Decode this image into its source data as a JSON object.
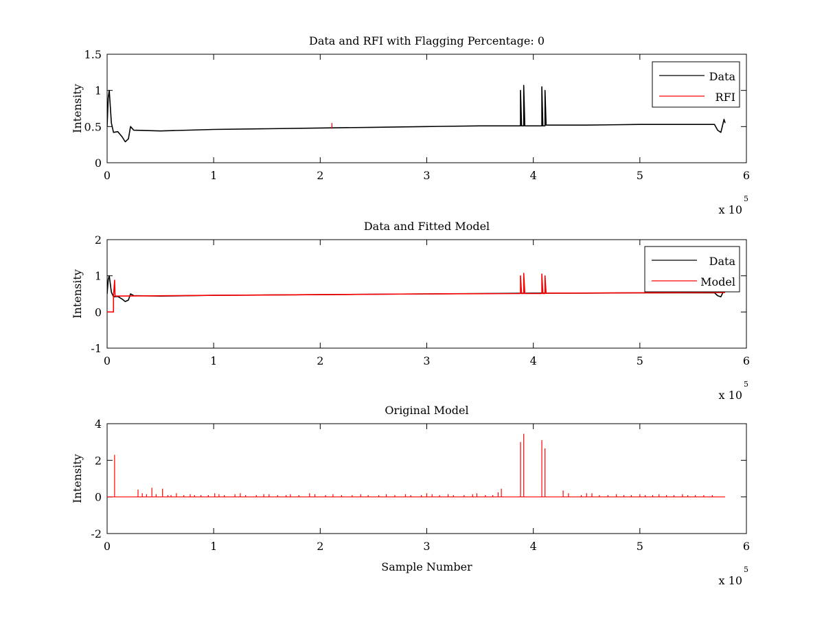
{
  "chart_data": [
    {
      "type": "line",
      "title": "Data and RFI with Flagging Percentage: 0",
      "xlabel": "",
      "ylabel": "Intensity",
      "xlim": [
        0,
        6
      ],
      "ylim": [
        0,
        1.5
      ],
      "x_ticks": [
        "0",
        "1",
        "2",
        "3",
        "4",
        "5",
        "6"
      ],
      "y_ticks": [
        "0",
        "0.5",
        "1",
        "1.5"
      ],
      "x_multiplier": "x 10",
      "x_multiplier_exp": "5",
      "legend_position": "top-right",
      "legend": [
        "Data",
        "RFI"
      ],
      "series": [
        {
          "name": "Data",
          "color": "#000000",
          "points": [
            [
              0,
              0.5
            ],
            [
              0.01,
              0.9
            ],
            [
              0.02,
              1.0
            ],
            [
              0.04,
              0.55
            ],
            [
              0.06,
              0.42
            ],
            [
              0.1,
              0.43
            ],
            [
              0.14,
              0.36
            ],
            [
              0.17,
              0.29
            ],
            [
              0.2,
              0.33
            ],
            [
              0.22,
              0.5
            ],
            [
              0.25,
              0.45
            ],
            [
              0.5,
              0.44
            ],
            [
              1,
              0.46
            ],
            [
              1.5,
              0.47
            ],
            [
              2,
              0.48
            ],
            [
              2.5,
              0.49
            ],
            [
              3,
              0.5
            ],
            [
              3.5,
              0.51
            ],
            [
              3.88,
              0.51
            ],
            [
              3.88,
              1.0
            ],
            [
              3.89,
              0.51
            ],
            [
              3.91,
              0.51
            ],
            [
              3.91,
              1.07
            ],
            [
              3.92,
              0.51
            ],
            [
              4.08,
              0.51
            ],
            [
              4.08,
              1.05
            ],
            [
              4.09,
              0.51
            ],
            [
              4.11,
              0.51
            ],
            [
              4.11,
              1.0
            ],
            [
              4.12,
              0.52
            ],
            [
              4.5,
              0.52
            ],
            [
              5,
              0.53
            ],
            [
              5.5,
              0.53
            ],
            [
              5.7,
              0.53
            ],
            [
              5.73,
              0.45
            ],
            [
              5.76,
              0.42
            ],
            [
              5.79,
              0.6
            ],
            [
              5.8,
              0.55
            ]
          ]
        },
        {
          "name": "RFI",
          "color": "#ff0000",
          "spikes": [
            [
              2.11,
              0.55
            ]
          ]
        }
      ]
    },
    {
      "type": "line",
      "title": "Data and Fitted Model",
      "xlabel": "",
      "ylabel": "Intensity",
      "xlim": [
        0,
        6
      ],
      "ylim": [
        -1,
        2
      ],
      "x_ticks": [
        "0",
        "1",
        "2",
        "3",
        "4",
        "5",
        "6"
      ],
      "y_ticks": [
        "-1",
        "0",
        "1",
        "2"
      ],
      "x_multiplier": "x 10",
      "x_multiplier_exp": "5",
      "legend_position": "top-right",
      "legend": [
        "Data",
        "Model"
      ],
      "series": [
        {
          "name": "Data",
          "color": "#000000",
          "points": [
            [
              0,
              0.5
            ],
            [
              0.01,
              0.9
            ],
            [
              0.02,
              1.0
            ],
            [
              0.04,
              0.55
            ],
            [
              0.06,
              0.42
            ],
            [
              0.1,
              0.43
            ],
            [
              0.14,
              0.36
            ],
            [
              0.17,
              0.29
            ],
            [
              0.2,
              0.33
            ],
            [
              0.22,
              0.5
            ],
            [
              0.25,
              0.45
            ],
            [
              0.5,
              0.44
            ],
            [
              1,
              0.46
            ],
            [
              1.5,
              0.47
            ],
            [
              2,
              0.48
            ],
            [
              2.5,
              0.49
            ],
            [
              3,
              0.5
            ],
            [
              3.5,
              0.51
            ],
            [
              4,
              0.52
            ],
            [
              4.5,
              0.52
            ],
            [
              5,
              0.53
            ],
            [
              5.5,
              0.53
            ],
            [
              5.7,
              0.53
            ],
            [
              5.73,
              0.45
            ],
            [
              5.76,
              0.42
            ],
            [
              5.79,
              0.6
            ],
            [
              5.8,
              0.55
            ]
          ]
        },
        {
          "name": "Model",
          "color": "#ff0000",
          "points": [
            [
              0,
              0
            ],
            [
              0.06,
              0
            ],
            [
              0.06,
              0.44
            ],
            [
              0.07,
              0.88
            ],
            [
              0.075,
              0.44
            ],
            [
              1,
              0.46
            ],
            [
              2,
              0.48
            ],
            [
              3,
              0.5
            ],
            [
              3.88,
              0.51
            ],
            [
              3.88,
              1.0
            ],
            [
              3.89,
              0.51
            ],
            [
              3.91,
              0.51
            ],
            [
              3.91,
              1.07
            ],
            [
              3.92,
              0.51
            ],
            [
              4.08,
              0.51
            ],
            [
              4.08,
              1.05
            ],
            [
              4.09,
              0.51
            ],
            [
              4.11,
              0.51
            ],
            [
              4.11,
              1.0
            ],
            [
              4.12,
              0.52
            ],
            [
              5,
              0.53
            ],
            [
              5.8,
              0.54
            ]
          ]
        }
      ]
    },
    {
      "type": "line",
      "title": "Original Model",
      "xlabel": "Sample Number",
      "ylabel": "Intensity",
      "xlim": [
        0,
        6
      ],
      "ylim": [
        -2,
        4
      ],
      "x_ticks": [
        "0",
        "1",
        "2",
        "3",
        "4",
        "5",
        "6"
      ],
      "y_ticks": [
        "-2",
        "0",
        "2",
        "4"
      ],
      "x_multiplier": "x 10",
      "x_multiplier_exp": "5",
      "series": [
        {
          "name": "Model",
          "color": "#ff0000",
          "baseline": 0,
          "x_end": 5.8,
          "spikes": [
            [
              0.07,
              2.3
            ],
            [
              0.29,
              0.4
            ],
            [
              0.33,
              0.2
            ],
            [
              0.37,
              0.15
            ],
            [
              0.42,
              0.5
            ],
            [
              0.46,
              0.15
            ],
            [
              0.52,
              0.45
            ],
            [
              0.57,
              0.1
            ],
            [
              0.6,
              0.1
            ],
            [
              0.65,
              0.2
            ],
            [
              0.72,
              0.1
            ],
            [
              0.78,
              0.15
            ],
            [
              0.82,
              0.1
            ],
            [
              0.88,
              0.1
            ],
            [
              0.95,
              0.1
            ],
            [
              1.01,
              0.2
            ],
            [
              1.05,
              0.15
            ],
            [
              1.1,
              0.1
            ],
            [
              1.2,
              0.15
            ],
            [
              1.25,
              0.2
            ],
            [
              1.3,
              0.1
            ],
            [
              1.4,
              0.1
            ],
            [
              1.47,
              0.15
            ],
            [
              1.52,
              0.15
            ],
            [
              1.6,
              0.1
            ],
            [
              1.68,
              0.1
            ],
            [
              1.72,
              0.15
            ],
            [
              1.8,
              0.1
            ],
            [
              1.9,
              0.2
            ],
            [
              1.95,
              0.15
            ],
            [
              2.05,
              0.1
            ],
            [
              2.12,
              0.15
            ],
            [
              2.2,
              0.1
            ],
            [
              2.3,
              0.1
            ],
            [
              2.38,
              0.15
            ],
            [
              2.45,
              0.1
            ],
            [
              2.55,
              0.1
            ],
            [
              2.62,
              0.15
            ],
            [
              2.7,
              0.1
            ],
            [
              2.8,
              0.15
            ],
            [
              2.85,
              0.1
            ],
            [
              2.95,
              0.1
            ],
            [
              3.0,
              0.2
            ],
            [
              3.05,
              0.15
            ],
            [
              3.12,
              0.1
            ],
            [
              3.2,
              0.15
            ],
            [
              3.25,
              0.1
            ],
            [
              3.35,
              0.1
            ],
            [
              3.43,
              0.15
            ],
            [
              3.47,
              0.2
            ],
            [
              3.55,
              0.1
            ],
            [
              3.62,
              0.1
            ],
            [
              3.67,
              0.25
            ],
            [
              3.7,
              0.45
            ],
            [
              3.88,
              3.0
            ],
            [
              3.91,
              3.45
            ],
            [
              4.08,
              3.1
            ],
            [
              4.11,
              2.65
            ],
            [
              4.28,
              0.35
            ],
            [
              4.33,
              0.2
            ],
            [
              4.45,
              0.1
            ],
            [
              4.5,
              0.2
            ],
            [
              4.55,
              0.2
            ],
            [
              4.62,
              0.1
            ],
            [
              4.7,
              0.1
            ],
            [
              4.78,
              0.15
            ],
            [
              4.85,
              0.1
            ],
            [
              4.92,
              0.1
            ],
            [
              5.0,
              0.15
            ],
            [
              5.05,
              0.1
            ],
            [
              5.12,
              0.1
            ],
            [
              5.18,
              0.15
            ],
            [
              5.25,
              0.1
            ],
            [
              5.32,
              0.1
            ],
            [
              5.4,
              0.15
            ],
            [
              5.45,
              0.1
            ],
            [
              5.52,
              0.1
            ],
            [
              5.6,
              0.1
            ],
            [
              5.68,
              0.1
            ]
          ]
        }
      ]
    }
  ]
}
